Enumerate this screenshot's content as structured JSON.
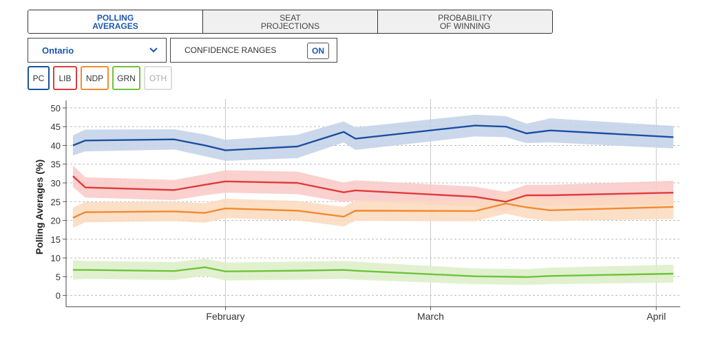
{
  "tabs": [
    {
      "label": "POLLING\nAVERAGES"
    },
    {
      "label": "SEAT\nPROJECTIONS"
    },
    {
      "label": "PROBABILITY\nOF WINNING"
    }
  ],
  "region": {
    "selected": "Ontario"
  },
  "confidence": {
    "label": "CONFIDENCE RANGES",
    "toggle": "ON"
  },
  "party_buttons": [
    {
      "label": "PC",
      "color": "#1a4fa0"
    },
    {
      "label": "LIB",
      "color": "#e03a3a"
    },
    {
      "label": "NDP",
      "color": "#f28a2e"
    },
    {
      "label": "GRN",
      "color": "#6fc23a"
    },
    {
      "label": "OTH",
      "color": "#dddddd"
    }
  ],
  "chart_data": {
    "type": "line",
    "title": "",
    "xlabel": "",
    "ylabel": "Polling Averages (%)",
    "ylim": [
      -3,
      52
    ],
    "yticks": [
      0,
      5,
      10,
      15,
      20,
      25,
      30,
      35,
      40,
      45,
      50
    ],
    "xlim": [
      -23.3,
      66.5
    ],
    "xticks": [
      {
        "label": "February",
        "x": 0
      },
      {
        "label": "March",
        "x": 30
      },
      {
        "label": "April",
        "x": 63
      }
    ],
    "x": [
      -22.3,
      -20.5,
      -7.5,
      -3,
      0,
      10.5,
      17.3,
      19,
      36.5,
      41,
      44,
      47.5,
      65.5
    ],
    "series": [
      {
        "name": "PC",
        "color": "#1a4fa0",
        "band_color": "#c2d1e8",
        "values": [
          40,
          41.3,
          41.6,
          40,
          38.7,
          39.7,
          43.6,
          41.8,
          45.3,
          45,
          43.2,
          44,
          42.2
        ],
        "upper": [
          42.7,
          44.2,
          44.3,
          42.9,
          41.5,
          42.8,
          46.4,
          44.8,
          48.2,
          47.8,
          45.8,
          47.2,
          45.2
        ],
        "lower": [
          37.3,
          38.4,
          38.9,
          37.1,
          35.9,
          36.6,
          40.8,
          38.8,
          42.4,
          42.2,
          40.6,
          40.8,
          39.2
        ]
      },
      {
        "name": "LIB",
        "color": "#e03a3a",
        "band_color": "#f9c9c6",
        "values": [
          31.8,
          28.8,
          28.1,
          29.5,
          30.4,
          30,
          27.5,
          28,
          26.3,
          25,
          26.7,
          26.7,
          27.4
        ],
        "upper": [
          34.7,
          31.5,
          30.8,
          32.3,
          33.4,
          33,
          30.1,
          30.7,
          29,
          27.6,
          29.5,
          29.5,
          30.6
        ],
        "lower": [
          28.9,
          26.1,
          25.4,
          26.7,
          27.4,
          27,
          24.9,
          25.3,
          23.6,
          22.4,
          23.9,
          23.9,
          24.2
        ]
      },
      {
        "name": "NDP",
        "color": "#f28a2e",
        "band_color": "#fcd9bd",
        "values": [
          20.7,
          22.2,
          22.4,
          22,
          23.2,
          22.6,
          21,
          22.6,
          22.5,
          24.5,
          23.5,
          22.7,
          23.6
        ],
        "upper": [
          23.4,
          24.9,
          25,
          24.6,
          25.8,
          25.2,
          23.6,
          25.3,
          25.2,
          27.2,
          26.4,
          25.6,
          26.8
        ],
        "lower": [
          18,
          19.5,
          19.8,
          19.4,
          20.6,
          20,
          18.4,
          19.9,
          19.8,
          21.8,
          20.6,
          19.8,
          20.4
        ]
      },
      {
        "name": "GRN",
        "color": "#6fc23a",
        "band_color": "#dcefc8",
        "values": [
          6.8,
          6.8,
          6.5,
          7.5,
          6.4,
          6.6,
          6.8,
          6.6,
          5.1,
          5,
          4.9,
          5.2,
          5.8
        ],
        "upper": [
          9.4,
          9.2,
          8.9,
          9.8,
          8.8,
          9,
          9.2,
          9,
          7.2,
          7.1,
          7,
          7.4,
          8.2
        ],
        "lower": [
          4.2,
          4.4,
          4.1,
          5.2,
          4,
          4.2,
          4.4,
          4.2,
          3,
          2.9,
          2.8,
          3,
          3.4
        ]
      }
    ]
  }
}
